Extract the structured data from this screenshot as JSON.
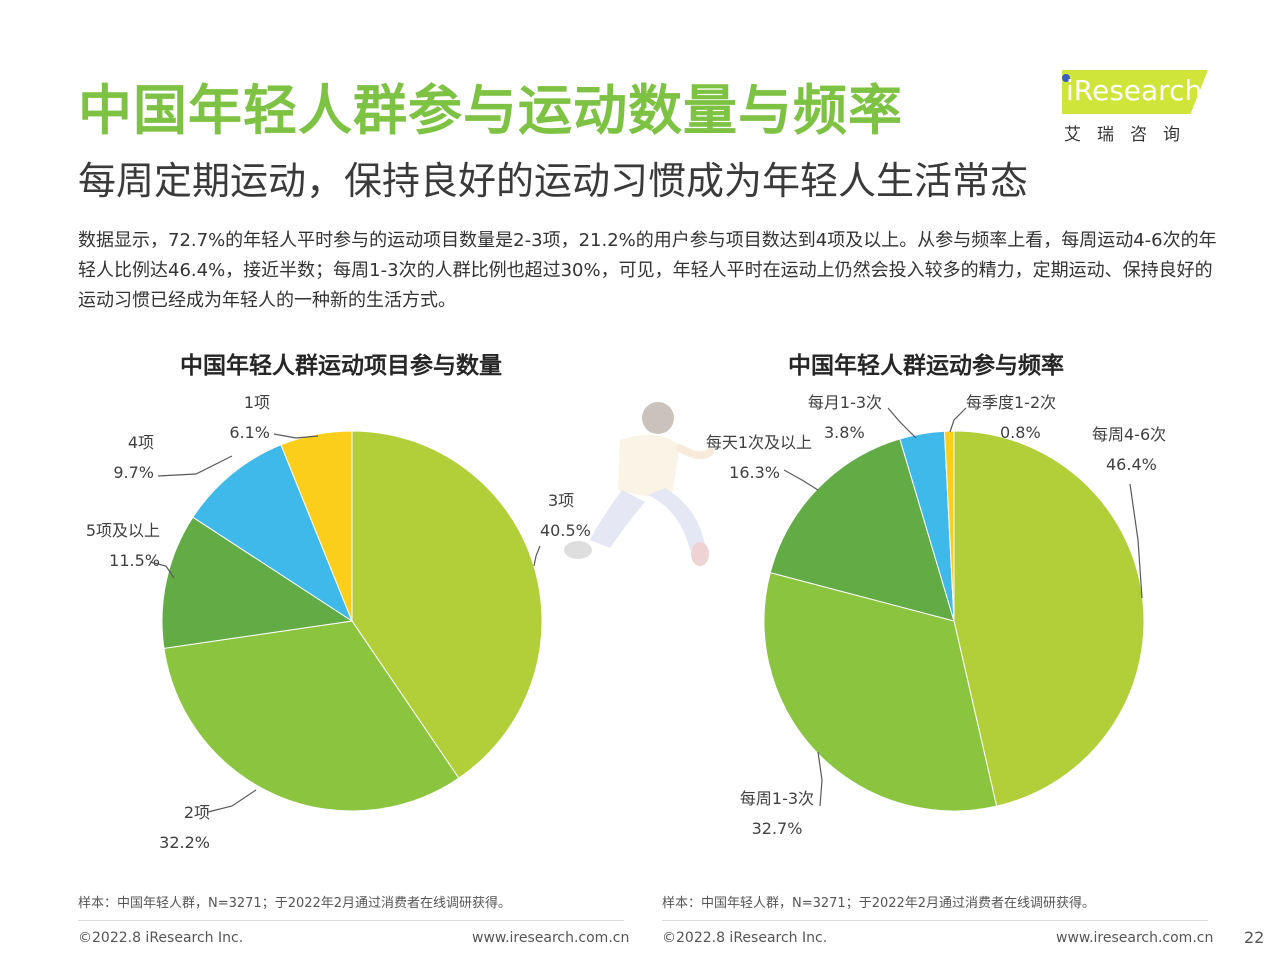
{
  "header": {
    "title": "中国年轻人群参与运动数量与频率",
    "subtitle": "每周定期运动，保持良好的运动习惯成为年轻人生活常态",
    "body": "数据显示，72.7%的年轻人平时参与的运动项目数量是2-3项，21.2%的用户参与项目数达到4项及以上。从参与频率上看，每周运动4-6次的年轻人比例达46.4%，接近半数；每周1-3次的人群比例也超过30%，可见，年轻人平时在运动上仍然会投入较多的精力，定期运动、保持良好的运动习惯已经成为年轻人的一种新的生活方式。"
  },
  "logo": {
    "text": "iResearch",
    "sub": "艾瑞咨询"
  },
  "colors": {
    "title_green": "#7dc242",
    "yellow_green": "#b2cf3a",
    "light_green": "#8bc43f",
    "green": "#62ab45",
    "blue": "#3fb9e9",
    "yellow": "#fbce1b"
  },
  "chart_data": [
    {
      "type": "pie",
      "title": "中国年轻人群运动项目参与数量",
      "slices": [
        {
          "label": "3项",
          "value": 40.5,
          "value_label": "40.5%",
          "color": "#b2cf3a"
        },
        {
          "label": "2项",
          "value": 32.2,
          "value_label": "32.2%",
          "color": "#8bc43f"
        },
        {
          "label": "5项及以上",
          "value": 11.5,
          "value_label": "11.5%",
          "color": "#62ab45"
        },
        {
          "label": "4项",
          "value": 9.7,
          "value_label": "9.7%",
          "color": "#3fb9e9"
        },
        {
          "label": "1项",
          "value": 6.1,
          "value_label": "6.1%",
          "color": "#fbce1b"
        }
      ]
    },
    {
      "type": "pie",
      "title": "中国年轻人群运动参与频率",
      "slices": [
        {
          "label": "每周4-6次",
          "value": 46.4,
          "value_label": "46.4%",
          "color": "#b2cf3a"
        },
        {
          "label": "每周1-3次",
          "value": 32.7,
          "value_label": "32.7%",
          "color": "#8bc43f"
        },
        {
          "label": "每天1次及以上",
          "value": 16.3,
          "value_label": "16.3%",
          "color": "#62ab45"
        },
        {
          "label": "每月1-3次",
          "value": 3.8,
          "value_label": "3.8%",
          "color": "#3fb9e9"
        },
        {
          "label": "每季度1-2次",
          "value": 0.8,
          "value_label": "0.8%",
          "color": "#fbce1b"
        }
      ]
    }
  ],
  "notes": {
    "left": "样本：中国年轻人群，N=3271；于2022年2月通过消费者在线调研获得。",
    "right": "样本：中国年轻人群，N=3271；于2022年2月通过消费者在线调研获得。"
  },
  "footer": {
    "copyright": "©2022.8 iResearch Inc.",
    "url": "www.iresearch.com.cn",
    "page": "22"
  }
}
